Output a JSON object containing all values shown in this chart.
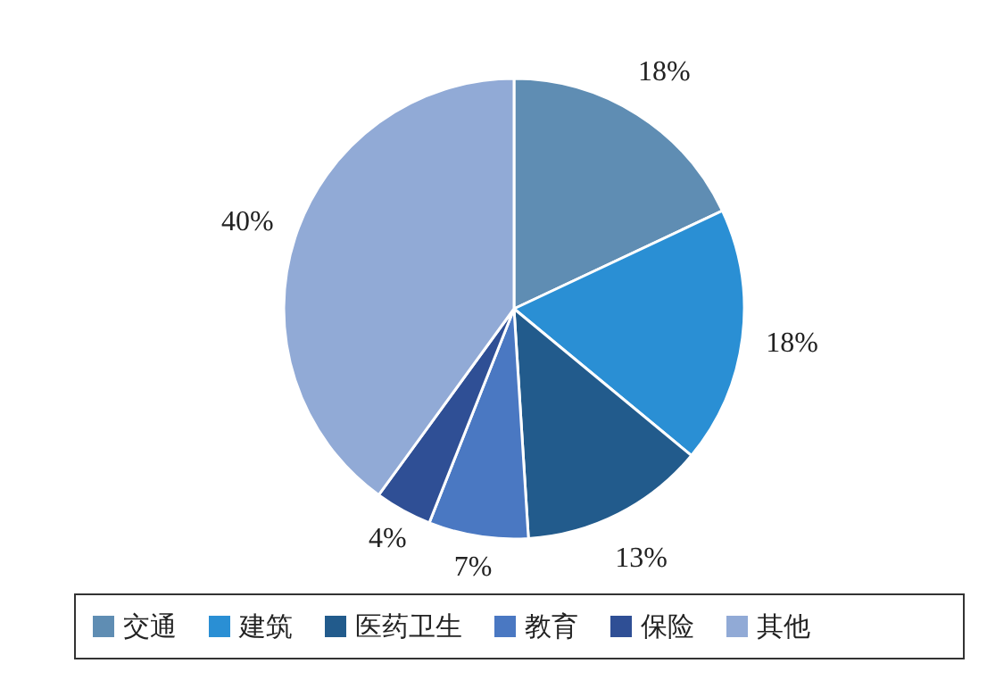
{
  "chart_data": {
    "type": "pie",
    "categories": [
      "交通",
      "建筑",
      "医药卫生",
      "教育",
      "保险",
      "其他"
    ],
    "values": [
      18,
      18,
      13,
      7,
      4,
      40
    ],
    "value_labels": [
      "18%",
      "18%",
      "13%",
      "7%",
      "4%",
      "40%"
    ],
    "colors": [
      "#5f8db3",
      "#2a8fd4",
      "#225b8c",
      "#4a78c2",
      "#2f4f95",
      "#91aad6"
    ],
    "legend": "bottom"
  }
}
